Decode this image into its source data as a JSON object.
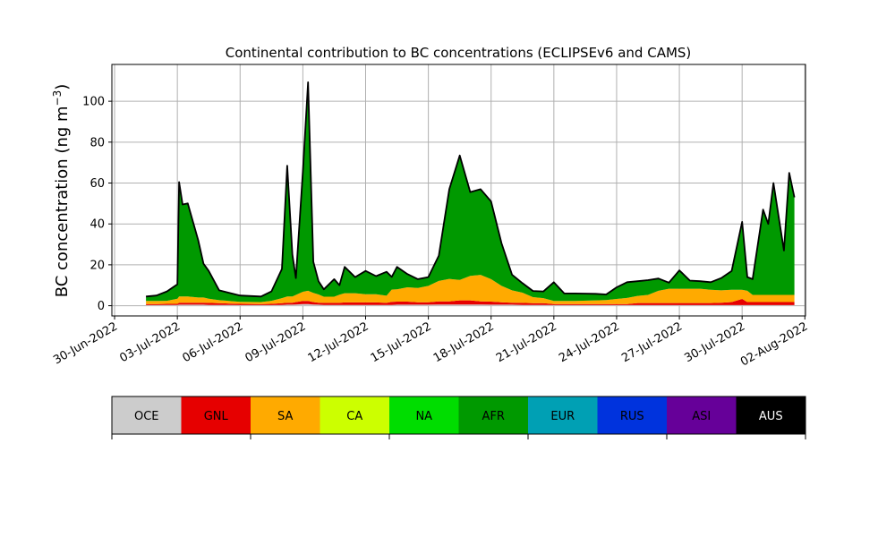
{
  "chart_data": {
    "type": "area",
    "title": "Continental contribution to BC concentrations (ECLIPSEv6 and CAMS)",
    "xlabel": "",
    "ylabel": "BC concentration (ng m⁻³)",
    "ylabel_base": "BC concentration (ng m",
    "ylabel_exp": "−3",
    "ylabel_close": ")",
    "xlim": [
      "2022-06-30",
      "2022-08-02"
    ],
    "ylim": [
      -5,
      118
    ],
    "yticks": [
      0,
      20,
      40,
      60,
      80,
      100
    ],
    "xticks": [
      {
        "date": "2022-06-30",
        "label": "30-Jun-2022"
      },
      {
        "date": "2022-07-03",
        "label": "03-Jul-2022"
      },
      {
        "date": "2022-07-06",
        "label": "06-Jul-2022"
      },
      {
        "date": "2022-07-09",
        "label": "09-Jul-2022"
      },
      {
        "date": "2022-07-12",
        "label": "12-Jul-2022"
      },
      {
        "date": "2022-07-15",
        "label": "15-Jul-2022"
      },
      {
        "date": "2022-07-18",
        "label": "18-Jul-2022"
      },
      {
        "date": "2022-07-21",
        "label": "21-Jul-2022"
      },
      {
        "date": "2022-07-24",
        "label": "24-Jul-2022"
      },
      {
        "date": "2022-07-27",
        "label": "27-Jul-2022"
      },
      {
        "date": "2022-07-30",
        "label": "30-Jul-2022"
      },
      {
        "date": "2022-08-02",
        "label": "02-Aug-2022"
      }
    ],
    "grid": true,
    "stacked": true,
    "series_order": [
      "OCE",
      "GNL",
      "SA",
      "CA",
      "NA",
      "AFR",
      "EUR",
      "RUS",
      "ASI",
      "AUS"
    ],
    "legend": [
      {
        "name": "OCE",
        "color": "#cccccc"
      },
      {
        "name": "GNL",
        "color": "#e60000"
      },
      {
        "name": "SA",
        "color": "#ffaa00"
      },
      {
        "name": "CA",
        "color": "#ccff00"
      },
      {
        "name": "NA",
        "color": "#00dd00"
      },
      {
        "name": "AFR",
        "color": "#009900"
      },
      {
        "name": "EUR",
        "color": "#00a0b4"
      },
      {
        "name": "RUS",
        "color": "#0033dd"
      },
      {
        "name": "ASI",
        "color": "#660099"
      },
      {
        "name": "AUS",
        "color": "#000000"
      }
    ],
    "total_line_color": "#000000",
    "x": [
      "2022-07-01 12:00",
      "2022-07-02 00:00",
      "2022-07-02 12:00",
      "2022-07-03 00:00",
      "2022-07-03 02:00",
      "2022-07-03 06:00",
      "2022-07-03 12:00",
      "2022-07-04 00:00",
      "2022-07-04 06:00",
      "2022-07-04 12:00",
      "2022-07-05 00:00",
      "2022-07-06 00:00",
      "2022-07-07 00:00",
      "2022-07-07 12:00",
      "2022-07-08 00:00",
      "2022-07-08 06:00",
      "2022-07-08 12:00",
      "2022-07-08 16:00",
      "2022-07-09 00:00",
      "2022-07-09 06:00",
      "2022-07-09 12:00",
      "2022-07-09 18:00",
      "2022-07-10 00:00",
      "2022-07-10 12:00",
      "2022-07-10 18:00",
      "2022-07-11 00:00",
      "2022-07-11 12:00",
      "2022-07-12 00:00",
      "2022-07-12 12:00",
      "2022-07-13 00:00",
      "2022-07-13 06:00",
      "2022-07-13 12:00",
      "2022-07-14 00:00",
      "2022-07-14 12:00",
      "2022-07-15 00:00",
      "2022-07-15 12:00",
      "2022-07-16 00:00",
      "2022-07-16 12:00",
      "2022-07-17 00:00",
      "2022-07-17 12:00",
      "2022-07-18 00:00",
      "2022-07-18 12:00",
      "2022-07-19 00:00",
      "2022-07-19 12:00",
      "2022-07-20 00:00",
      "2022-07-20 12:00",
      "2022-07-21 00:00",
      "2022-07-21 12:00",
      "2022-07-22 00:00",
      "2022-07-23 00:00",
      "2022-07-23 12:00",
      "2022-07-24 00:00",
      "2022-07-24 12:00",
      "2022-07-25 00:00",
      "2022-07-25 12:00",
      "2022-07-26 00:00",
      "2022-07-26 12:00",
      "2022-07-27 00:00",
      "2022-07-27 12:00",
      "2022-07-28 00:00",
      "2022-07-28 12:00",
      "2022-07-29 00:00",
      "2022-07-29 12:00",
      "2022-07-30 00:00",
      "2022-07-30 06:00",
      "2022-07-30 12:00",
      "2022-07-31 00:00",
      "2022-07-31 06:00",
      "2022-07-31 12:00",
      "2022-08-01 00:00",
      "2022-08-01 06:00",
      "2022-08-01 12:00"
    ],
    "series": [
      {
        "name": "OCE",
        "values": [
          0.3,
          0.3,
          0.4,
          0.4,
          0.5,
          0.5,
          0.5,
          0.5,
          0.5,
          0.4,
          0.4,
          0.3,
          0.3,
          0.3,
          0.4,
          0.5,
          0.5,
          0.6,
          0.8,
          0.8,
          0.6,
          0.5,
          0.4,
          0.4,
          0.4,
          0.4,
          0.4,
          0.4,
          0.4,
          0.4,
          0.4,
          0.5,
          0.5,
          0.5,
          0.5,
          0.6,
          0.6,
          0.6,
          0.6,
          0.6,
          0.5,
          0.5,
          0.5,
          0.4,
          0.4,
          0.4,
          0.3,
          0.3,
          0.3,
          0.3,
          0.3,
          0.3,
          0.3,
          0.3,
          0.3,
          0.3,
          0.3,
          0.3,
          0.3,
          0.3,
          0.3,
          0.3,
          0.3,
          0.3,
          0.3,
          0.3,
          0.3,
          0.3,
          0.3,
          0.3,
          0.3,
          0.3
        ]
      },
      {
        "name": "GNL",
        "values": [
          0.5,
          0.5,
          0.5,
          0.5,
          1.0,
          1.0,
          1.0,
          1.0,
          1.0,
          1.0,
          0.8,
          0.6,
          0.5,
          0.6,
          0.8,
          1.0,
          1.0,
          1.2,
          1.5,
          1.5,
          1.2,
          1.0,
          1.0,
          1.0,
          1.0,
          1.2,
          1.2,
          1.2,
          1.2,
          1.0,
          1.5,
          1.5,
          1.5,
          1.2,
          1.2,
          1.5,
          1.5,
          2.0,
          2.0,
          1.5,
          1.5,
          1.2,
          1.0,
          1.0,
          0.8,
          0.8,
          0.5,
          0.5,
          0.5,
          0.5,
          0.5,
          0.5,
          0.5,
          1.0,
          1.0,
          1.0,
          1.0,
          1.0,
          1.0,
          1.0,
          1.0,
          1.2,
          1.5,
          3.0,
          1.5,
          1.5,
          1.5,
          1.5,
          1.5,
          1.5,
          1.5,
          1.5
        ]
      },
      {
        "name": "SA",
        "values": [
          1.5,
          1.5,
          1.5,
          2.5,
          3.0,
          3.0,
          3.0,
          2.5,
          2.5,
          2.0,
          1.5,
          1.0,
          1.0,
          1.5,
          2.5,
          3.0,
          3.0,
          3.5,
          4.5,
          5.0,
          4.5,
          4.0,
          3.0,
          3.0,
          4.0,
          4.5,
          4.5,
          4.0,
          4.0,
          3.5,
          6.0,
          6.0,
          7.0,
          7.0,
          8.0,
          10.0,
          11.0,
          10.0,
          12.0,
          13.0,
          11.0,
          8.0,
          6.0,
          5.0,
          3.0,
          2.5,
          1.5,
          1.5,
          1.5,
          1.8,
          2.0,
          2.5,
          3.0,
          3.5,
          4.0,
          6.0,
          7.0,
          7.0,
          7.0,
          7.0,
          6.5,
          6.0,
          6.0,
          4.5,
          5.5,
          3.5,
          3.5,
          3.5,
          3.5,
          3.5,
          3.5,
          3.5
        ]
      },
      {
        "name": "CA",
        "values": [
          0,
          0,
          0,
          0,
          0,
          0,
          0,
          0,
          0,
          0,
          0,
          0,
          0,
          0,
          0,
          0,
          0,
          0,
          0,
          0,
          0,
          0,
          0,
          0,
          0,
          0,
          0,
          0,
          0,
          0,
          0,
          0,
          0,
          0,
          0,
          0,
          0,
          0,
          0,
          0,
          0,
          0,
          0,
          0,
          0,
          0,
          0,
          0,
          0,
          0,
          0,
          0,
          0,
          0,
          0,
          0,
          0,
          0,
          0,
          0,
          0,
          0,
          0,
          0,
          0,
          0,
          0,
          0,
          0,
          0,
          0,
          0
        ]
      },
      {
        "name": "NA",
        "values": [
          0,
          0,
          0,
          0,
          0,
          0,
          0,
          0,
          0,
          0,
          0,
          0,
          0,
          0,
          0,
          0,
          0,
          0,
          0,
          0,
          0,
          0,
          0,
          0,
          0,
          0,
          0,
          0,
          0,
          0,
          0,
          0,
          0,
          0,
          0,
          0,
          0,
          0,
          0,
          0,
          0,
          0,
          0,
          0,
          0,
          0,
          0,
          0,
          0,
          0,
          0,
          0,
          0,
          0,
          0,
          0,
          0,
          0,
          0,
          0,
          0,
          0,
          0,
          0,
          0,
          0,
          0,
          0,
          0,
          0,
          0,
          0
        ]
      },
      {
        "name": "AFR",
        "values": [
          2.2,
          2.7,
          4.6,
          7.1,
          56.0,
          45.0,
          45.5,
          28.0,
          16.5,
          13.6,
          4.8,
          3.1,
          2.7,
          4.6,
          14.3,
          64.0,
          20.5,
          8.2,
          58.8,
          102.0,
          15.2,
          6.5,
          3.6,
          8.6,
          4.6,
          12.9,
          7.9,
          11.4,
          8.9,
          11.7,
          6.2,
          11.0,
          6.5,
          4.3,
          4.3,
          12.4,
          43.9,
          60.9,
          41.0,
          41.9,
          38.0,
          20.8,
          7.7,
          4.6,
          3.0,
          3.3,
          9.2,
          3.7,
          3.7,
          3.2,
          2.7,
          5.7,
          7.7,
          7.2,
          7.2,
          6.0,
          3.0,
          9.0,
          4.0,
          3.7,
          3.7,
          6.0,
          9.2,
          33.2,
          6.7,
          7.7,
          41.7,
          34.7,
          54.7,
          21.7,
          59.7,
          47.7
        ]
      },
      {
        "name": "EUR",
        "values": [
          0,
          0,
          0,
          0,
          0,
          0,
          0,
          0,
          0,
          0,
          0,
          0,
          0,
          0,
          0,
          0,
          0,
          0,
          0,
          0,
          0,
          0,
          0,
          0,
          0,
          0,
          0,
          0,
          0,
          0,
          0,
          0,
          0,
          0,
          0,
          0,
          0,
          0,
          0,
          0,
          0,
          0,
          0,
          0,
          0,
          0,
          0,
          0,
          0,
          0,
          0,
          0,
          0,
          0,
          0,
          0,
          0,
          0,
          0,
          0,
          0,
          0,
          0,
          0,
          0,
          0,
          0,
          0,
          0,
          0,
          0,
          0
        ]
      },
      {
        "name": "RUS",
        "values": [
          0,
          0,
          0,
          0,
          0,
          0,
          0,
          0,
          0,
          0,
          0,
          0,
          0,
          0,
          0,
          0,
          0,
          0,
          0,
          0,
          0,
          0,
          0,
          0,
          0,
          0,
          0,
          0,
          0,
          0,
          0,
          0,
          0,
          0,
          0,
          0,
          0,
          0,
          0,
          0,
          0,
          0,
          0,
          0,
          0,
          0,
          0,
          0,
          0,
          0,
          0,
          0,
          0,
          0,
          0,
          0,
          0,
          0,
          0,
          0,
          0,
          0,
          0,
          0,
          0,
          0,
          0,
          0,
          0,
          0,
          0,
          0
        ]
      },
      {
        "name": "ASI",
        "values": [
          0,
          0,
          0,
          0,
          0,
          0,
          0,
          0,
          0,
          0,
          0,
          0,
          0,
          0,
          0,
          0,
          0,
          0,
          0,
          0,
          0,
          0,
          0,
          0,
          0,
          0,
          0,
          0,
          0,
          0,
          0,
          0,
          0,
          0,
          0,
          0,
          0,
          0,
          0,
          0,
          0,
          0,
          0,
          0,
          0,
          0,
          0,
          0,
          0,
          0,
          0,
          0,
          0,
          0,
          0,
          0,
          0,
          0,
          0,
          0,
          0,
          0,
          0,
          0,
          0,
          0,
          0,
          0,
          0,
          0,
          0,
          0
        ]
      },
      {
        "name": "AUS",
        "values": [
          0,
          0,
          0,
          0,
          0,
          0,
          0,
          0,
          0,
          0,
          0,
          0,
          0,
          0,
          0,
          0,
          0,
          0,
          0,
          0,
          0,
          0,
          0,
          0,
          0,
          0,
          0,
          0,
          0,
          0,
          0,
          0,
          0,
          0,
          0,
          0,
          0,
          0,
          0,
          0,
          0,
          0,
          0,
          0,
          0,
          0,
          0,
          0,
          0,
          0,
          0,
          0,
          0,
          0,
          0,
          0,
          0,
          0,
          0,
          0,
          0,
          0,
          0,
          0,
          0,
          0,
          0,
          0,
          0,
          0,
          0,
          0
        ]
      }
    ]
  }
}
